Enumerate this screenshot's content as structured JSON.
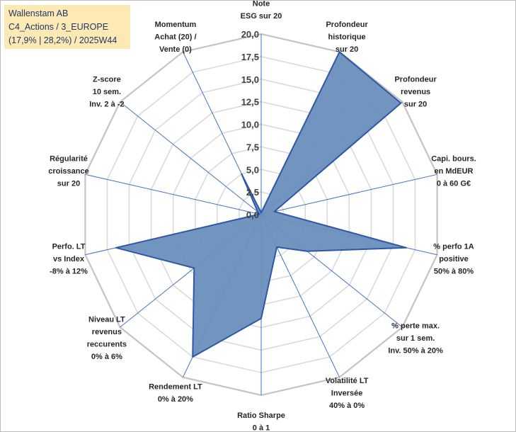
{
  "title": {
    "line1": "Wallenstam AB",
    "line2": "C4_Actions / 3_EUROPE",
    "line3": "(17,9% | 28,2%) / 2025W44"
  },
  "chart_data": {
    "type": "radar",
    "rmin": 0,
    "rmax": 20,
    "ticks": [
      "0,0",
      "2,5",
      "5,0",
      "7,5",
      "10,0",
      "12,5",
      "15,0",
      "17,5",
      "20,0"
    ],
    "grid": true,
    "axes": [
      [
        "Note",
        "ESG sur 20"
      ],
      [
        "Profondeur",
        "historique",
        "sur 20"
      ],
      [
        "Profondeur",
        "revenus",
        "sur 20"
      ],
      [
        "Capi. bours.",
        "en MdEUR",
        "0 à 60 G€"
      ],
      [
        "% perfo 1A",
        "positive",
        "50% à 80%"
      ],
      [
        "% perte max.",
        "sur 1 sem.",
        "Inv. 50% à 20%"
      ],
      [
        "Volatilité LT",
        "Inversée",
        "40% à 0%"
      ],
      [
        "Ratio Sharpe",
        "0 à 1"
      ],
      [
        "Rendement LT",
        "0% à 20%"
      ],
      [
        "Niveau LT",
        "revenus",
        "reccurents",
        "0% à 6%"
      ],
      [
        "Perfo. LT",
        "vs Index",
        "-8% à 12%"
      ],
      [
        "Régularité",
        "croissance",
        "sur 20"
      ],
      [
        "Z-score",
        "10 sem.",
        "Inv. 2 à -2"
      ],
      [
        "Momentum",
        "Achat (20) /",
        "Vente (0)"
      ]
    ],
    "series": [
      {
        "name": "Wallenstam AB",
        "values": [
          0.2,
          20.0,
          19.8,
          1.5,
          16.5,
          6.5,
          4.0,
          11.5,
          17.5,
          9.5,
          16.5,
          0.2,
          0.5,
          5.0
        ]
      }
    ],
    "colors": {
      "fill": "#6a8fbd",
      "stroke": "#2e58a6",
      "spoke": "#4472c4",
      "grid_outer": "#c4c4c4",
      "grid_inner": "#dadada"
    }
  }
}
